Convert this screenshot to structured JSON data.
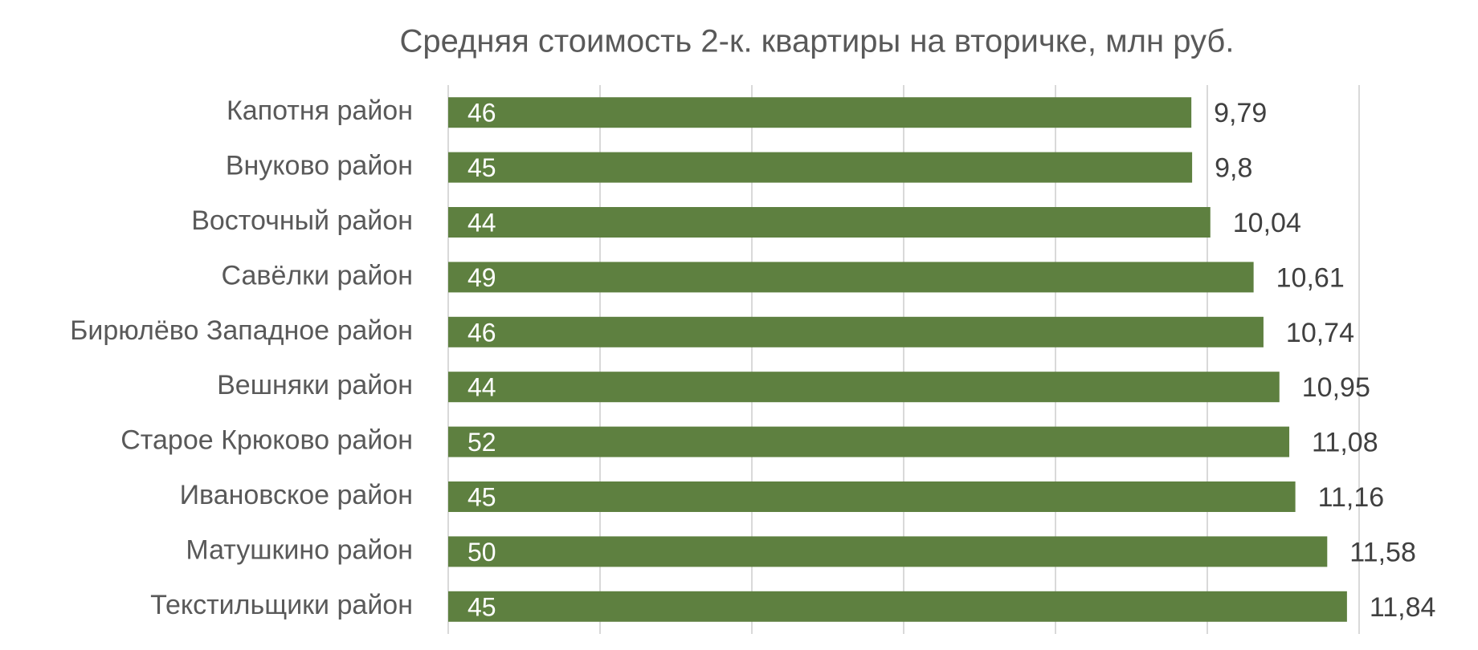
{
  "chart_data": {
    "type": "bar",
    "orientation": "horizontal",
    "title": "Средняя стоимость 2-к. квартиры на вторичке, млн руб.",
    "categories": [
      "Капотня район",
      "Внуково район",
      "Восточный район",
      "Савёлки район",
      "Бирюлёво Западное район",
      "Вешняки район",
      "Старое Крюково район",
      "Ивановское район",
      "Матушкино район",
      "Текстильщики район"
    ],
    "values": [
      9.79,
      9.8,
      10.04,
      10.61,
      10.74,
      10.95,
      11.08,
      11.16,
      11.58,
      11.84
    ],
    "value_labels": [
      "9,79",
      "9,8",
      "10,04",
      "10,61",
      "10,74",
      "10,95",
      "11,08",
      "11,16",
      "11,58",
      "11,84"
    ],
    "inner_values": [
      46,
      45,
      44,
      49,
      46,
      44,
      52,
      45,
      50,
      45
    ],
    "color": "#5e8040",
    "xlim": [
      0,
      12
    ],
    "xticks": [
      0,
      2,
      4,
      6,
      8,
      10,
      12
    ],
    "grid": true
  }
}
